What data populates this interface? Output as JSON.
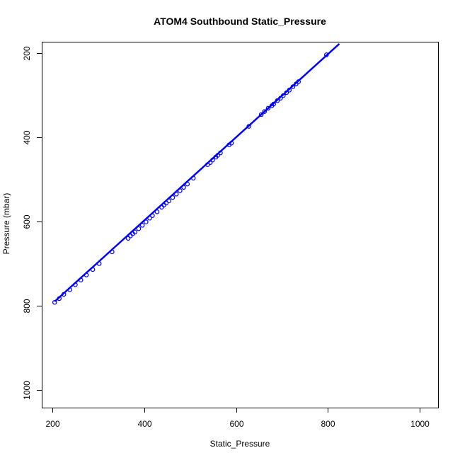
{
  "chart_data": {
    "type": "scatter",
    "title": "ATOM4 Southbound Static_Pressure",
    "xlabel": "Static_Pressure",
    "ylabel": "Pressure (mbar)",
    "xlim": [
      200,
      1000
    ],
    "ylim": [
      1000,
      200
    ],
    "y_reversed": true,
    "x_ticks": [
      200,
      400,
      600,
      800,
      1000
    ],
    "y_ticks": [
      200,
      400,
      600,
      800,
      1000
    ],
    "grid": false,
    "legend": "none",
    "colors": {
      "points": "#0000ff",
      "line": "#0000ff",
      "frame": "#000000"
    },
    "line": {
      "x": [
        205,
        825
      ],
      "y": [
        790,
        178
      ]
    },
    "series": [
      {
        "points": [
          [
            205,
            792
          ],
          [
            215,
            783
          ],
          [
            225,
            773
          ],
          [
            238,
            762
          ],
          [
            250,
            750
          ],
          [
            262,
            739
          ],
          [
            274,
            727
          ],
          [
            288,
            714
          ],
          [
            302,
            700
          ],
          [
            330,
            672
          ],
          [
            365,
            640
          ],
          [
            370,
            634
          ],
          [
            375,
            629
          ],
          [
            380,
            625
          ],
          [
            388,
            617
          ],
          [
            396,
            609
          ],
          [
            404,
            601
          ],
          [
            412,
            592
          ],
          [
            418,
            586
          ],
          [
            428,
            577
          ],
          [
            438,
            566
          ],
          [
            443,
            561
          ],
          [
            448,
            556
          ],
          [
            454,
            551
          ],
          [
            462,
            543
          ],
          [
            470,
            535
          ],
          [
            478,
            527
          ],
          [
            486,
            519
          ],
          [
            494,
            511
          ],
          [
            507,
            497
          ],
          [
            538,
            465
          ],
          [
            544,
            460
          ],
          [
            549,
            454
          ],
          [
            556,
            447
          ],
          [
            560,
            443
          ],
          [
            566,
            437
          ],
          [
            585,
            418
          ],
          [
            590,
            414
          ],
          [
            628,
            374
          ],
          [
            655,
            346
          ],
          [
            662,
            339
          ],
          [
            670,
            331
          ],
          [
            678,
            325
          ],
          [
            682,
            321
          ],
          [
            690,
            313
          ],
          [
            697,
            307
          ],
          [
            703,
            301
          ],
          [
            710,
            294
          ],
          [
            716,
            288
          ],
          [
            724,
            280
          ],
          [
            731,
            273
          ],
          [
            736,
            268
          ],
          [
            797,
            204
          ]
        ]
      }
    ]
  }
}
